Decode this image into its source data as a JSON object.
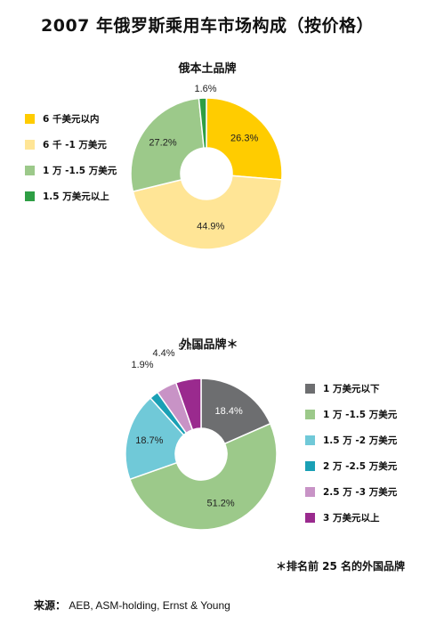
{
  "title": "2007 年俄罗斯乘用车市场构成（按价格）",
  "footnote": "＊排名前 25 名的外国品牌",
  "source": {
    "label": "来源：",
    "text": "AEB, ASM-holding, Ernst & Young"
  },
  "chart_data": [
    {
      "type": "pie",
      "title": "俄本土品牌",
      "donut": true,
      "legend_position": "left",
      "slices": [
        {
          "label": "6 千美元以内",
          "value": 26.3,
          "display": "26.3%",
          "color": "#ffcc00"
        },
        {
          "label": "6 千 -1 万美元",
          "value": 44.9,
          "display": "44.9%",
          "color": "#ffe596"
        },
        {
          "label": "1 万 -1.5 万美元",
          "value": 27.2,
          "display": "27.2%",
          "color": "#9cc98a"
        },
        {
          "label": "1.5 万美元以上",
          "value": 1.6,
          "display": "1.6%",
          "color": "#2e9e44"
        }
      ]
    },
    {
      "type": "pie",
      "title": "外国品牌＊",
      "donut": true,
      "legend_position": "right",
      "slices": [
        {
          "label": "1 万美元以下",
          "value": 18.4,
          "display": "18.4%",
          "color": "#6d6e70"
        },
        {
          "label": "1 万 -1.5 万美元",
          "value": 51.2,
          "display": "51.2%",
          "color": "#9cc98a"
        },
        {
          "label": "1.5 万 -2 万美元",
          "value": 18.7,
          "display": "18.7%",
          "color": "#70c9d8"
        },
        {
          "label": "2 万 -2.5 万美元",
          "value": 1.9,
          "display": "1.9%",
          "color": "#1aa0b5"
        },
        {
          "label": "2.5 万 -3 万美元",
          "value": 4.4,
          "display": "4.4%",
          "color": "#c893c6"
        },
        {
          "label": "3 万美元以上",
          "value": 5.4,
          "display": "5.4%",
          "color": "#9a2a8e"
        }
      ]
    }
  ]
}
